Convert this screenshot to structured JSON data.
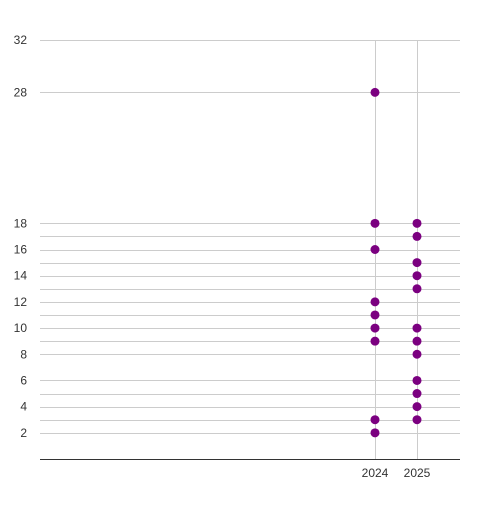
{
  "chart_data": {
    "type": "scatter",
    "title": "",
    "xlabel": "",
    "ylabel": "",
    "x_categories": [
      "2024",
      "2025"
    ],
    "y_tick_labels": [
      "2",
      "4",
      "6",
      "8",
      "10",
      "12",
      "14",
      "16",
      "18",
      "28",
      "32"
    ],
    "y_gridlines": [
      2,
      3,
      4,
      5,
      6,
      8,
      9,
      10,
      11,
      12,
      13,
      14,
      15,
      16,
      17,
      18,
      28,
      32
    ],
    "ylim": [
      0,
      32
    ],
    "grid": true,
    "legend": "none",
    "series": [
      {
        "points": [
          {
            "x": "2024",
            "y": 28
          },
          {
            "x": "2024",
            "y": 18
          },
          {
            "x": "2024",
            "y": 16
          },
          {
            "x": "2024",
            "y": 12
          },
          {
            "x": "2024",
            "y": 11
          },
          {
            "x": "2024",
            "y": 10
          },
          {
            "x": "2024",
            "y": 9
          },
          {
            "x": "2024",
            "y": 3
          },
          {
            "x": "2024",
            "y": 2
          },
          {
            "x": "2025",
            "y": 18
          },
          {
            "x": "2025",
            "y": 17
          },
          {
            "x": "2025",
            "y": 15
          },
          {
            "x": "2025",
            "y": 14
          },
          {
            "x": "2025",
            "y": 13
          },
          {
            "x": "2025",
            "y": 10
          },
          {
            "x": "2025",
            "y": 9
          },
          {
            "x": "2025",
            "y": 8
          },
          {
            "x": "2025",
            "y": 6
          },
          {
            "x": "2025",
            "y": 5
          },
          {
            "x": "2025",
            "y": 4
          },
          {
            "x": "2025",
            "y": 3
          }
        ]
      }
    ],
    "colors": {
      "marker": "#7b0080",
      "grid": "#cccccc",
      "axis": "#333333",
      "text": "#333333"
    }
  }
}
